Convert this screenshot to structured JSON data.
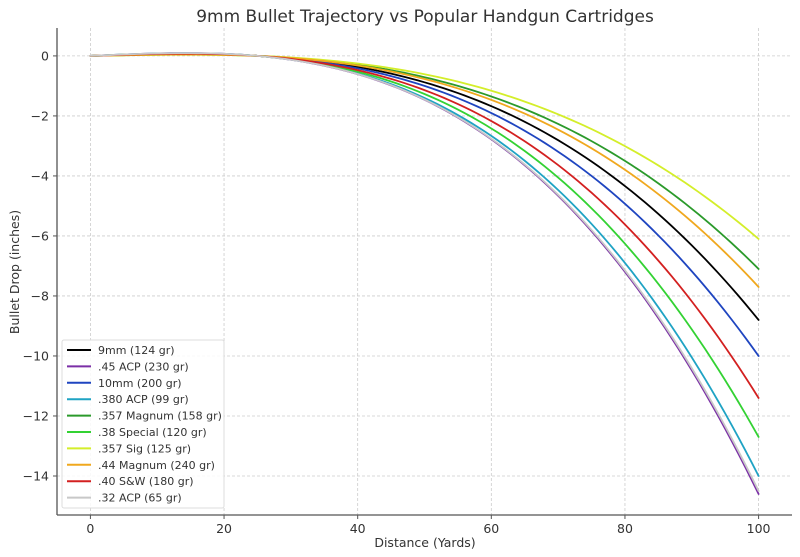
{
  "chart_data": {
    "type": "line",
    "title": "9mm Bullet Trajectory vs Popular Handgun Cartridges",
    "xlabel": "Distance (Yards)",
    "ylabel": "Bullet Drop (inches)",
    "xlim": [
      -5,
      105
    ],
    "ylim": [
      -15.3,
      0.93
    ],
    "xticks": [
      0,
      20,
      40,
      60,
      80,
      100
    ],
    "yticks": [
      0,
      -2,
      -4,
      -6,
      -8,
      -10,
      -12,
      -14
    ],
    "ytick_labels": [
      "0",
      "−2",
      "−4",
      "−6",
      "−8",
      "−10",
      "−12",
      "−14"
    ],
    "grid": true,
    "legend_position": "lower left",
    "zero_range_yards": 25,
    "x": [
      0,
      10,
      20,
      25,
      30,
      40,
      50,
      60,
      70,
      80,
      90,
      100
    ],
    "series": [
      {
        "name": "9mm (124 gr)",
        "color": "#000000",
        "drop_at_100": -8.8,
        "values": [
          0,
          0.05,
          0.04,
          0,
          -0.08,
          -0.37,
          -0.88,
          -1.68,
          -2.81,
          -4.34,
          -6.32,
          -8.8
        ]
      },
      {
        "name": ".45 ACP (230 gr)",
        "color": "#7b2fa6",
        "drop_at_100": -14.6,
        "values": [
          0,
          0.08,
          0.07,
          0,
          -0.13,
          -0.62,
          -1.46,
          -2.79,
          -4.66,
          -7.19,
          -10.48,
          -14.6
        ]
      },
      {
        "name": "10mm (200 gr)",
        "color": "#1f45c0",
        "drop_at_100": -10.0,
        "values": [
          0,
          0.06,
          0.05,
          0,
          -0.09,
          -0.43,
          -1.0,
          -1.91,
          -3.19,
          -4.93,
          -7.18,
          -10.0
        ]
      },
      {
        "name": ".380 ACP (99 gr)",
        "color": "#1fa3c4",
        "drop_at_100": -14.0,
        "values": [
          0,
          0.08,
          0.06,
          0,
          -0.13,
          -0.6,
          -1.4,
          -2.67,
          -4.47,
          -6.9,
          -10.05,
          -14.0
        ]
      },
      {
        "name": ".357 Magnum (158 gr)",
        "color": "#2b9a2b",
        "drop_at_100": -7.1,
        "values": [
          0,
          0.04,
          0.03,
          0,
          -0.06,
          -0.3,
          -0.71,
          -1.36,
          -2.27,
          -3.5,
          -5.1,
          -7.1
        ]
      },
      {
        "name": ".38 Special (120 gr)",
        "color": "#33d233",
        "drop_at_100": -12.7,
        "values": [
          0,
          0.07,
          0.06,
          0,
          -0.11,
          -0.54,
          -1.27,
          -2.43,
          -4.05,
          -6.26,
          -9.12,
          -12.7
        ]
      },
      {
        "name": ".357 Sig (125 gr)",
        "color": "#d4ee2a",
        "drop_at_100": -6.1,
        "values": [
          0,
          0.03,
          0.03,
          0,
          -0.05,
          -0.26,
          -0.61,
          -1.16,
          -1.95,
          -3.0,
          -4.38,
          -6.1
        ]
      },
      {
        "name": ".44 Magnum (240 gr)",
        "color": "#f0a81e",
        "drop_at_100": -7.7,
        "values": [
          0,
          0.04,
          0.04,
          0,
          -0.07,
          -0.33,
          -0.77,
          -1.47,
          -2.46,
          -3.8,
          -5.53,
          -7.7
        ]
      },
      {
        "name": ".40 S&W (180 gr)",
        "color": "#d32020",
        "drop_at_100": -11.4,
        "values": [
          0,
          0.06,
          0.05,
          0,
          -0.1,
          -0.49,
          -1.14,
          -2.18,
          -3.64,
          -5.62,
          -8.19,
          -11.4
        ]
      },
      {
        "name": ".32 ACP (65 gr)",
        "color": "#c8c8c8",
        "drop_at_100": -14.5,
        "values": [
          0,
          0.08,
          0.07,
          0,
          -0.13,
          -0.61,
          -1.45,
          -2.77,
          -4.63,
          -7.15,
          -10.41,
          -14.5
        ]
      }
    ]
  }
}
